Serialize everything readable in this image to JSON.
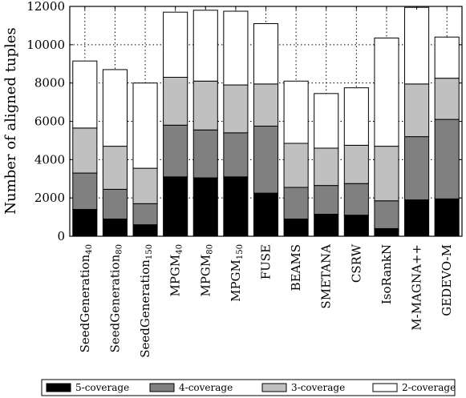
{
  "chart_data": {
    "type": "bar",
    "stacked": true,
    "ylabel": "Number of aligned tuples",
    "xlabel": "",
    "ylim": [
      0,
      12000
    ],
    "yticks": [
      0,
      2000,
      4000,
      6000,
      8000,
      10000,
      12000
    ],
    "grid": "dotted",
    "legend_position": "bottom",
    "categories": [
      {
        "base": "SeedGeneration",
        "sub": "40"
      },
      {
        "base": "SeedGeneration",
        "sub": "80"
      },
      {
        "base": "SeedGeneration",
        "sub": "150"
      },
      {
        "base": "MPGM",
        "sub": "40"
      },
      {
        "base": "MPGM",
        "sub": "80"
      },
      {
        "base": "MPGM",
        "sub": "150"
      },
      {
        "base": "FUSE",
        "sub": ""
      },
      {
        "base": "BEAMS",
        "sub": ""
      },
      {
        "base": "SMETANA",
        "sub": ""
      },
      {
        "base": "CSRW",
        "sub": ""
      },
      {
        "base": "IsoRankN",
        "sub": ""
      },
      {
        "base": "M-MAGNA++",
        "sub": ""
      },
      {
        "base": "GEDEVO-M",
        "sub": ""
      }
    ],
    "series": [
      {
        "name": "5-coverage",
        "color": "#000000",
        "values": [
          1400,
          900,
          600,
          3100,
          3050,
          3100,
          2250,
          900,
          1150,
          1100,
          400,
          1900,
          1950
        ]
      },
      {
        "name": "4-coverage",
        "color": "#808080",
        "values": [
          1900,
          1550,
          1100,
          2700,
          2500,
          2300,
          3500,
          1650,
          1500,
          1650,
          1450,
          3300,
          4150
        ]
      },
      {
        "name": "3-coverage",
        "color": "#c0c0c0",
        "values": [
          2350,
          2250,
          1850,
          2500,
          2550,
          2500,
          2200,
          2300,
          1950,
          2000,
          2850,
          2750,
          2150
        ]
      },
      {
        "name": "2-coverage",
        "color": "#ffffff",
        "values": [
          3500,
          4000,
          4450,
          3400,
          3700,
          3850,
          3150,
          3250,
          2850,
          3000,
          5650,
          4000,
          2150
        ]
      }
    ]
  }
}
